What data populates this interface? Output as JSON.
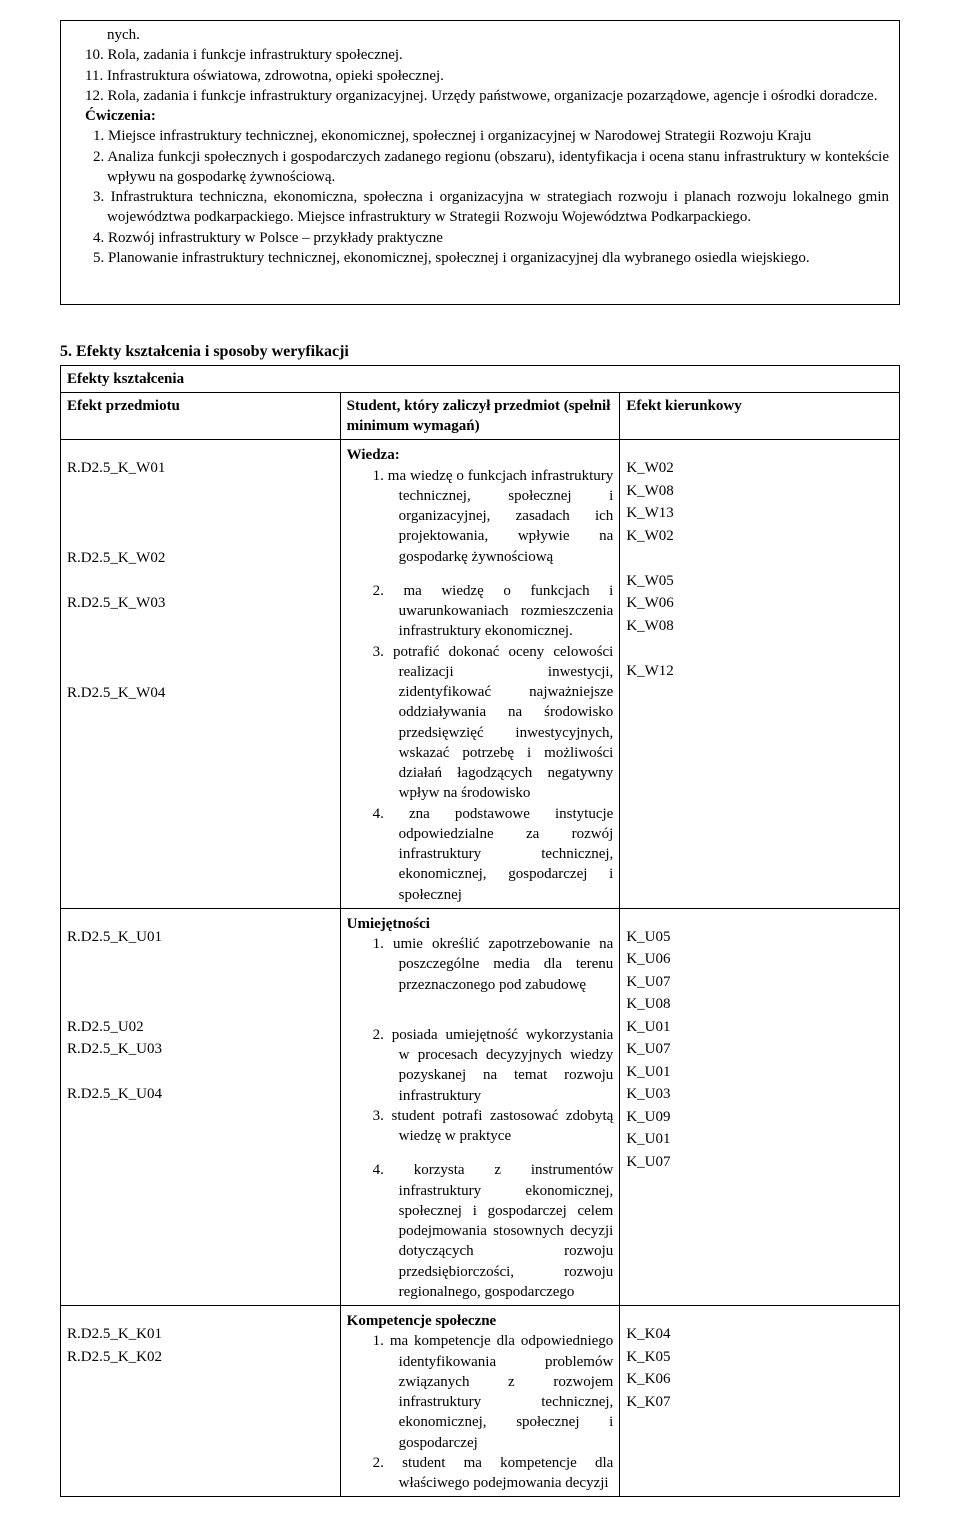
{
  "topBox": {
    "lines": [
      {
        "cls": "cont",
        "t": "nych."
      },
      {
        "cls": "indent1",
        "t": "10. Rola, zadania i funkcje infrastruktury społecznej."
      },
      {
        "cls": "indent1",
        "t": "11. Infrastruktura oświatowa, zdrowotna, opieki społecznej."
      },
      {
        "cls": "indent1",
        "t": "12. Rola, zadania i funkcje infrastruktury organizacyjnej. Urzędy państwowe, organizacje pozarządowe, agencje i ośrodki doradcze."
      }
    ],
    "cwiczenia_label": "Ćwiczenia:",
    "cwiczenia": [
      {
        "cls": "indent1b",
        "t": "1. Miejsce infrastruktury technicznej, ekonomicznej, społecznej i organizacyjnej w Narodowej Strategii Rozwoju Kraju"
      },
      {
        "cls": "indent1b",
        "t": "2. Analiza funkcji społecznych i gospodarczych zadanego regionu (obszaru),  identyfikacja i ocena stanu infrastruktury w kontekście wpływu na gospodarkę żywnościową."
      },
      {
        "cls": "indent1b",
        "t": "3. Infrastruktura techniczna, ekonomiczna, społeczna i organizacyjna w strategiach rozwoju i planach rozwoju lokalnego gmin województwa podkarpackiego. Miejsce infrastruktury w Strategii Rozwoju Województwa Podkarpackiego."
      },
      {
        "cls": "indent1b",
        "t": "4. Rozwój infrastruktury w Polsce – przykłady praktyczne"
      },
      {
        "cls": "indent1b",
        "t": "5. Planowanie infrastruktury technicznej, ekonomicznej, społecznej i organizacyjnej dla wybranego osiedla wiejskiego."
      }
    ]
  },
  "sectionTitle": "5. Efekty kształcenia i sposoby weryfikacji",
  "table": {
    "header_full": "Efekty kształcenia",
    "col1_header": "Efekt przedmiotu",
    "col2_header": "Student, który zaliczył przedmiot (spełnił minimum wymagań)",
    "col3_header": "Efekt kierunkowy",
    "col1_codes": [
      "R.D2.5_K_W01",
      "",
      "",
      "",
      "R.D2.5_K_W02",
      "",
      "R.D2.5_K_W03",
      "",
      "",
      "",
      "R.D2.5_K_W04"
    ],
    "col1_codes_u": [
      "R.D2.5_K_U01",
      "",
      "",
      "",
      "R.D2.5_U02",
      "R.D2.5_K_U03",
      "",
      "R.D2.5_K_U04"
    ],
    "col1_codes_k": [
      "R.D2.5_K_K01",
      "R.D2.5_K_K02"
    ],
    "wiedza_head": "Wiedza:",
    "wiedza_items": [
      "1.  ma wiedzę o funkcjach infrastruktury technicznej, społecznej i organizacyjnej, zasadach ich projektowania, wpływie na gospodarkę żywnościową",
      "2.  ma wiedzę o funkcjach i uwarunkowaniach rozmieszczenia infrastruktury ekonomicznej.",
      "3.  potrafić dokonać oceny celowości realizacji inwestycji, zidentyfikować najważniejsze oddziaływania na środowisko przedsięwzięć inwestycyjnych, wskazać potrzebę i możliwości działań łagodzących negatywny wpływ na środowisko",
      "4.  zna podstawowe instytucje odpowiedzialne za rozwój infrastruktury technicznej, ekonomicznej, gospodarczej i społecznej"
    ],
    "umiej_head": "Umiejętności",
    "umiej_items": [
      "1.  umie określić zapotrzebowanie na poszczególne media dla terenu przeznaczonego pod zabudowę",
      "2.  posiada umiejętność wykorzystania w procesach decyzyjnych wiedzy pozyskanej na temat  rozwoju infrastruktury",
      "3.  student potrafi zastosować zdobytą wiedzę w praktyce",
      "4.  korzysta z instrumentów infrastruktury ekonomicznej, społecznej i gospodarczej celem podejmowania stosownych decyzji dotyczących rozwoju przedsiębiorczości, rozwoju regionalnego, gospodarczego"
    ],
    "komp_head": "Kompetencje społeczne",
    "komp_items": [
      "1.  ma kompetencje dla odpowiedniego identyfikowania problemów związanych z rozwojem infrastruktury technicznej, ekonomicznej, społecznej i gospodarczej",
      "2.  student ma kompetencje dla właściwego podejmowania decyzji"
    ],
    "col3_w": [
      "K_W02",
      "K_W08",
      "K_W13",
      "K_W02",
      "",
      "K_W05",
      "K_W06",
      "K_W08",
      "",
      "K_W12"
    ],
    "col3_u": [
      "K_U05",
      "K_U06",
      "K_U07",
      "K_U08",
      "K_U01",
      "K_U07",
      "K_U01",
      "K_U03",
      "K_U09",
      "K_U01",
      "K_U07"
    ],
    "col3_k": [
      "K_K04",
      "K_K05",
      "K_K06",
      "K_K07"
    ]
  }
}
